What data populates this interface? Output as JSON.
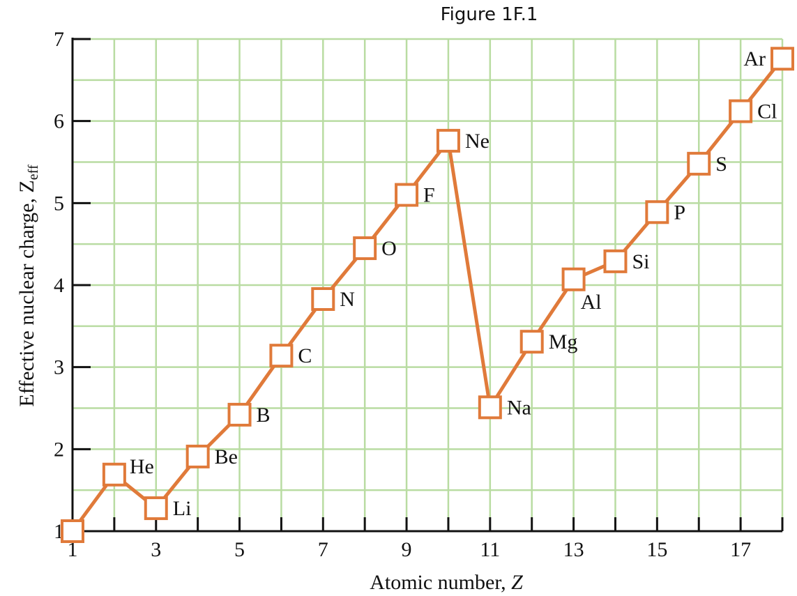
{
  "chart_data": {
    "type": "line",
    "title": "Figure 1F.1",
    "xlabel_text": "Atomic number, ",
    "xlabel_var": "Z",
    "ylabel_text": "Effective nuclear charge, Z",
    "ylabel_sub": "eff",
    "xlim": [
      1,
      18
    ],
    "ylim": [
      1,
      7
    ],
    "x_ticks": [
      1,
      3,
      5,
      7,
      9,
      11,
      13,
      15,
      17
    ],
    "y_ticks": [
      1,
      2,
      3,
      4,
      5,
      6,
      7
    ],
    "grid": true,
    "colors": {
      "line": "#e07a3a",
      "grid": "#b9dca2",
      "axis": "#111111"
    },
    "series": [
      {
        "points": [
          {
            "z": 1,
            "zeff": 1.0,
            "label": ""
          },
          {
            "z": 2,
            "zeff": 1.69,
            "label": "He"
          },
          {
            "z": 3,
            "zeff": 1.28,
            "label": "Li"
          },
          {
            "z": 4,
            "zeff": 1.91,
            "label": "Be"
          },
          {
            "z": 5,
            "zeff": 2.42,
            "label": "B"
          },
          {
            "z": 6,
            "zeff": 3.14,
            "label": "C"
          },
          {
            "z": 7,
            "zeff": 3.83,
            "label": "N"
          },
          {
            "z": 8,
            "zeff": 4.45,
            "label": "O"
          },
          {
            "z": 9,
            "zeff": 5.1,
            "label": "F"
          },
          {
            "z": 10,
            "zeff": 5.76,
            "label": "Ne"
          },
          {
            "z": 11,
            "zeff": 2.51,
            "label": "Na"
          },
          {
            "z": 12,
            "zeff": 3.31,
            "label": "Mg"
          },
          {
            "z": 13,
            "zeff": 4.07,
            "label": "Al"
          },
          {
            "z": 14,
            "zeff": 4.29,
            "label": "Si"
          },
          {
            "z": 15,
            "zeff": 4.89,
            "label": "P"
          },
          {
            "z": 16,
            "zeff": 5.48,
            "label": "S"
          },
          {
            "z": 17,
            "zeff": 6.12,
            "label": "Cl"
          },
          {
            "z": 18,
            "zeff": 6.76,
            "label": "Ar"
          }
        ]
      }
    ]
  }
}
